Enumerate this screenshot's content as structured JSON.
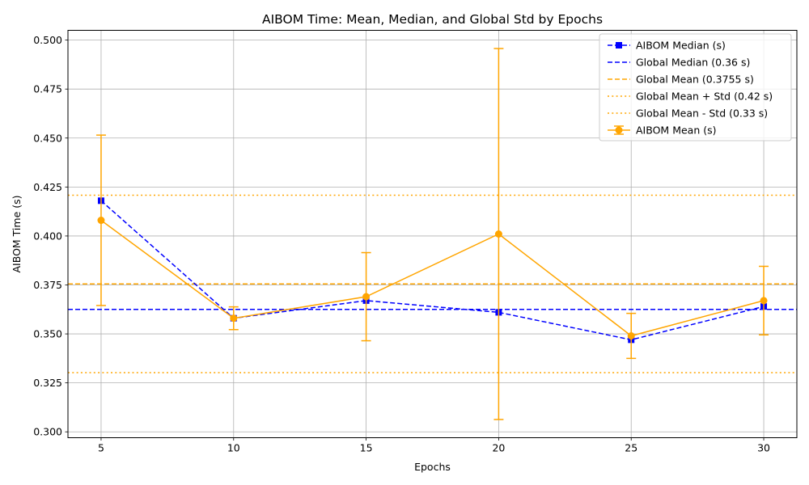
{
  "chart_data": {
    "type": "line",
    "title": "AIBOM Time: Mean, Median, and Global Std by Epochs",
    "xlabel": "Epochs",
    "ylabel": "AIBOM Time (s)",
    "x": [
      5,
      10,
      15,
      20,
      25,
      30
    ],
    "xlim": [
      3.75,
      31.25
    ],
    "ylim": [
      0.297,
      0.505
    ],
    "xticks": [
      5,
      10,
      15,
      20,
      25,
      30
    ],
    "xtick_labels": [
      "5",
      "10",
      "15",
      "20",
      "25",
      "30"
    ],
    "yticks": [
      0.3,
      0.325,
      0.35,
      0.375,
      0.4,
      0.425,
      0.45,
      0.475,
      0.5
    ],
    "ytick_labels": [
      "0.300",
      "0.325",
      "0.350",
      "0.375",
      "0.400",
      "0.425",
      "0.450",
      "0.475",
      "0.500"
    ],
    "grid": true,
    "legend_position": "top-right",
    "series": [
      {
        "name": "AIBOM Median (s)",
        "kind": "line",
        "color": "#0000ff",
        "dash": "dashed",
        "marker": "square",
        "values": [
          0.418,
          0.358,
          0.367,
          0.361,
          0.347,
          0.364
        ]
      },
      {
        "name": "AIBOM Mean (s)",
        "kind": "errorbar",
        "color": "#ffa500",
        "dash": "solid",
        "marker": "circle",
        "values": [
          0.408,
          0.358,
          0.369,
          0.401,
          0.349,
          0.367
        ],
        "error": [
          0.0435,
          0.0058,
          0.0225,
          0.0947,
          0.0115,
          0.0175
        ]
      }
    ],
    "reference_lines": [
      {
        "name": "Global Median (0.36 s)",
        "y": 0.3625,
        "color": "#0000ff",
        "dash": "dashed"
      },
      {
        "name": "Global Mean (0.3755 s)",
        "y": 0.3755,
        "color": "#ffa500",
        "dash": "dashed"
      },
      {
        "name": "Global Mean + Std (0.42 s)",
        "y": 0.4208,
        "color": "#ffa500",
        "dash": "dotted"
      },
      {
        "name": "Global Mean - Std (0.33 s)",
        "y": 0.3302,
        "color": "#ffa500",
        "dash": "dotted"
      }
    ],
    "legend_order": [
      "AIBOM Median (s)",
      "Global Median (0.36 s)",
      "Global Mean (0.3755 s)",
      "Global Mean + Std (0.42 s)",
      "Global Mean - Std (0.33 s)",
      "AIBOM Mean (s)"
    ]
  }
}
